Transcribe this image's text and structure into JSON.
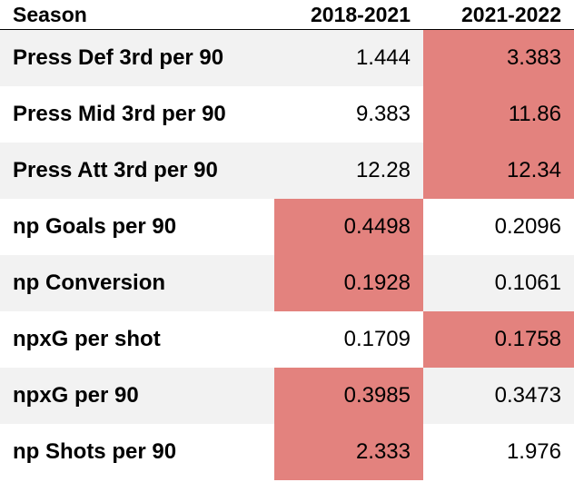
{
  "table": {
    "header": {
      "label": "Season",
      "col_a": "2018-2021",
      "col_b": "2021-2022"
    },
    "highlight_color": "#e3827e",
    "stripe_color": "#f2f2f2",
    "rows": [
      {
        "label": "Press Def 3rd per 90",
        "a": "1.444",
        "b": "3.383",
        "highlight": "b"
      },
      {
        "label": "Press Mid 3rd per 90",
        "a": "9.383",
        "b": "11.86",
        "highlight": "b"
      },
      {
        "label": "Press Att 3rd per 90",
        "a": "12.28",
        "b": "12.34",
        "highlight": "b"
      },
      {
        "label": "np Goals per 90",
        "a": "0.4498",
        "b": "0.2096",
        "highlight": "a"
      },
      {
        "label": "np Conversion",
        "a": "0.1928",
        "b": "0.1061",
        "highlight": "a"
      },
      {
        "label": "npxG per shot",
        "a": "0.1709",
        "b": "0.1758",
        "highlight": "b"
      },
      {
        "label": "npxG per 90",
        "a": "0.3985",
        "b": "0.3473",
        "highlight": "a"
      },
      {
        "label": "np Shots per 90",
        "a": "2.333",
        "b": "1.976",
        "highlight": "a"
      }
    ]
  }
}
